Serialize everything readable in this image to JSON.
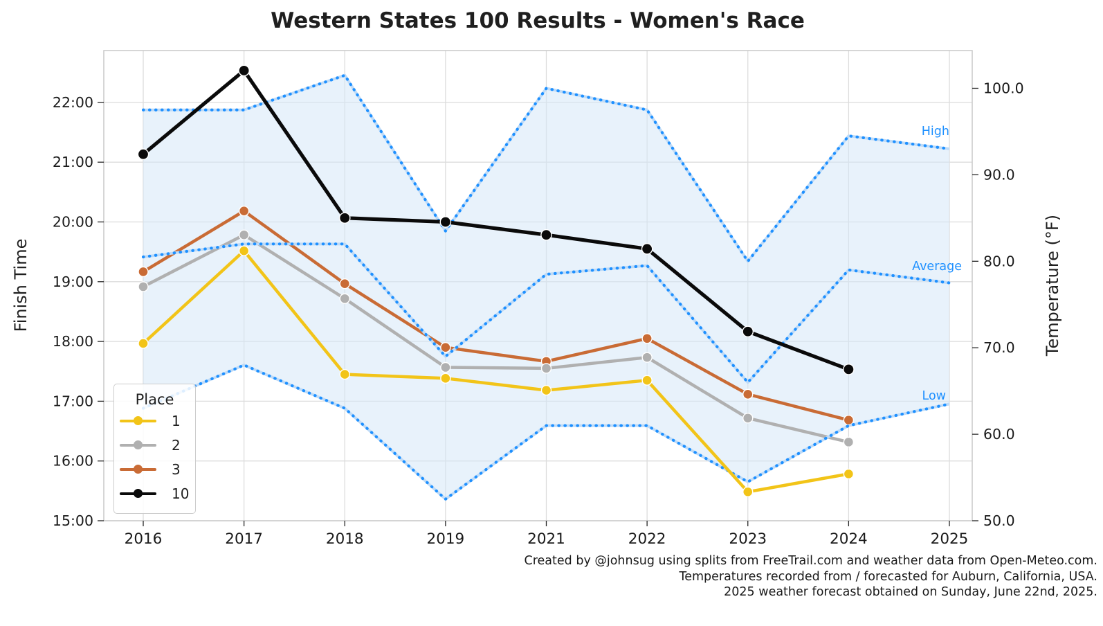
{
  "title": "Western States 100 Results - Women's Race",
  "axes": {
    "y_left_label": "Finish Time",
    "y_right_label": "Temperature (°F)",
    "y_left_ticks": [
      "15:00",
      "16:00",
      "17:00",
      "18:00",
      "19:00",
      "20:00",
      "21:00",
      "22:00"
    ],
    "y_right_ticks": [
      "50.0",
      "60.0",
      "70.0",
      "80.0",
      "90.0",
      "100.0"
    ],
    "x_ticks": [
      "2016",
      "2017",
      "2018",
      "2019",
      "2021",
      "2022",
      "2023",
      "2024",
      "2025"
    ]
  },
  "legend": {
    "title": "Place"
  },
  "annotations": {
    "high": "High",
    "average": "Average",
    "low": "Low"
  },
  "captions": [
    "Created by @johnsug using splits from FreeTrail.com and weather data from Open-Meteo.com.",
    "Temperatures recorded from / forecasted for Auburn, California, USA.",
    "2025 weather forecast obtained on Sunday, June 22nd, 2025."
  ],
  "colors": {
    "place1": "#F2C418",
    "place2": "#B0B0B0",
    "place3": "#C96B35",
    "place10": "#0A0A0A",
    "temperature": "#1E90FF",
    "temperature_backing": "#BFDBF7",
    "band_fill": "#D6E7F8",
    "gridline": "#DCDCDC",
    "spine": "#C8C8C8"
  },
  "chart_data": {
    "type": "line",
    "title": "Western States 100 Results - Women's Race",
    "x_categories": [
      "2016",
      "2017",
      "2018",
      "2019",
      "2021",
      "2022",
      "2023",
      "2024",
      "2025"
    ],
    "xlabel": "",
    "ylabel_left": "Finish Time",
    "ylabel_right": "Temperature (°F)",
    "ylim_left_hours": [
      15.0,
      22.87
    ],
    "ylim_right_f": [
      50.0,
      104.4
    ],
    "grid": true,
    "legend_title": "Place",
    "legend_position": "lower left",
    "finish_time_series": [
      {
        "place": "1",
        "color": "#F2C418",
        "values": [
          "17:58",
          "19:31",
          "17:27",
          "17:23",
          "17:11",
          "17:21",
          "15:29",
          "15:47"
        ]
      },
      {
        "place": "2",
        "color": "#B0B0B0",
        "values": [
          "18:55",
          "19:47",
          "18:43",
          "17:34",
          "17:33",
          "17:44",
          "16:43",
          "16:19"
        ]
      },
      {
        "place": "3",
        "color": "#C96B35",
        "values": [
          "19:10",
          "20:11",
          "18:58",
          "17:54",
          "17:40",
          "18:03",
          "17:07",
          "16:41"
        ]
      },
      {
        "place": "10",
        "color": "#0A0A0A",
        "values": [
          "21:08",
          "22:32",
          "20:04",
          "20:00",
          "19:47",
          "19:33",
          "18:10",
          "17:32"
        ]
      }
    ],
    "temperature_series": [
      {
        "name": "High",
        "values": [
          97.5,
          97.5,
          101.5,
          83.5,
          100.0,
          97.5,
          80.0,
          94.5,
          93.0
        ]
      },
      {
        "name": "Average",
        "values": [
          80.5,
          82.0,
          82.0,
          69.0,
          78.5,
          79.5,
          66.0,
          79.0,
          77.5
        ]
      },
      {
        "name": "Low",
        "values": [
          63.0,
          68.0,
          63.0,
          52.5,
          61.0,
          61.0,
          54.5,
          61.0,
          63.5
        ]
      }
    ]
  }
}
